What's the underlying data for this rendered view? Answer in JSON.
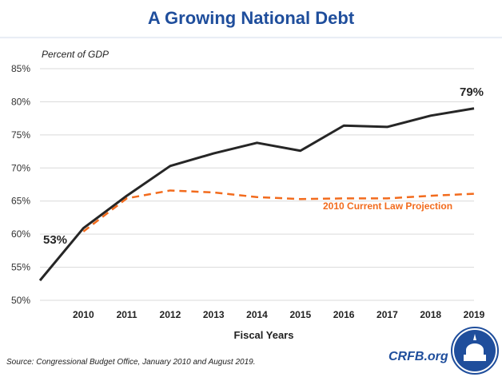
{
  "chart_data": {
    "type": "line",
    "title": "A Growing National Debt",
    "ylabel": "Percent of GDP",
    "xlabel": "Fiscal Years",
    "ylim": [
      50,
      85
    ],
    "yticks": [
      "50%",
      "55%",
      "60%",
      "65%",
      "70%",
      "75%",
      "80%",
      "85%"
    ],
    "ytick_values": [
      50,
      55,
      60,
      65,
      70,
      75,
      80,
      85
    ],
    "x": [
      2009,
      2010,
      2011,
      2012,
      2013,
      2014,
      2015,
      2016,
      2017,
      2018,
      2019
    ],
    "xticks": [
      "2010",
      "2011",
      "2012",
      "2013",
      "2014",
      "2015",
      "2016",
      "2017",
      "2018",
      "2019"
    ],
    "grid": true,
    "series": [
      {
        "values": [
          53.0,
          60.9,
          65.8,
          70.3,
          72.2,
          73.8,
          72.6,
          76.4,
          76.2,
          77.9,
          79.0
        ],
        "color": "#262626",
        "style": "solid"
      },
      {
        "name": "2010 Current Law Projection",
        "x": [
          2010,
          2011,
          2012,
          2013,
          2014,
          2015,
          2016,
          2017,
          2018,
          2019
        ],
        "values": [
          60.4,
          65.4,
          66.6,
          66.3,
          65.6,
          65.3,
          65.4,
          65.4,
          65.8,
          66.1
        ],
        "color": "#f26b1d",
        "style": "dashed"
      }
    ],
    "annotations": [
      "53%",
      "79%"
    ]
  },
  "source": "Source: Congressional Budget Office, January 2010 and August 2019.",
  "site": "CRFB.org",
  "colors": {
    "title": "#1f4e9c",
    "logo": "#1f4e9c"
  }
}
